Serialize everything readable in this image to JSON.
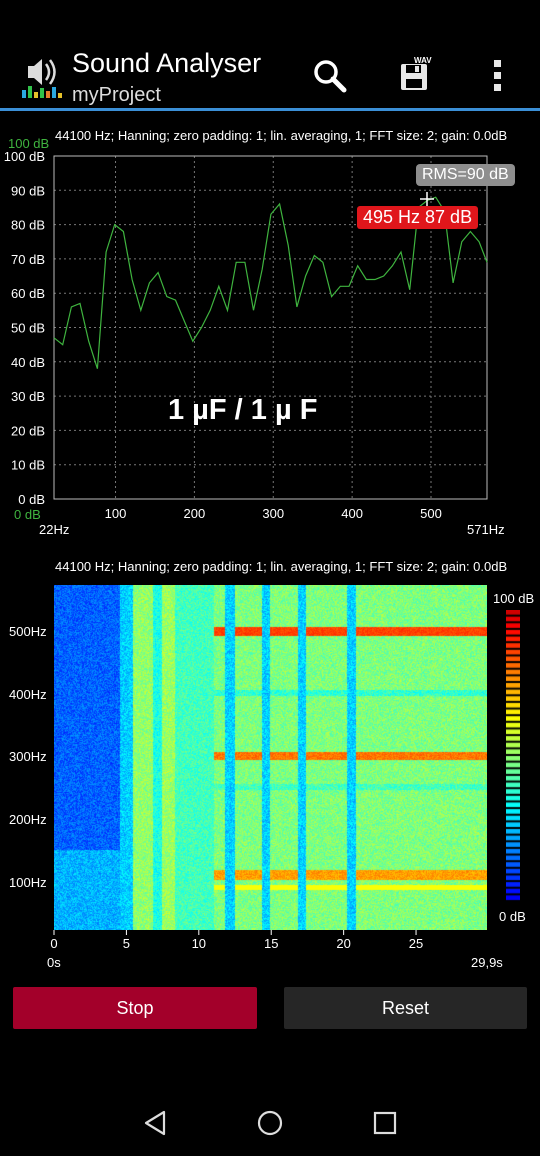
{
  "app": {
    "title": "Sound Analyser",
    "project": "myProject"
  },
  "toolbar": {
    "icons": [
      "search-icon",
      "save-wav-icon",
      "more-vert-icon"
    ],
    "wav_label": "WAV"
  },
  "spectrum": {
    "info": "44100 Hz; Hanning; zero padding: 1; lin. averaging, 1; FFT size: 2; gain: 0.0dB",
    "top_green_label": "100 dB",
    "bottom_green_label": "0 dB",
    "overlay_text": "1 µF / 1 µ F",
    "rms_label": "RMS=90 dB",
    "peak_label": "495 Hz  87 dB",
    "x_min_label": "22Hz",
    "x_max_label": "571Hz"
  },
  "spectrogram": {
    "info": "44100 Hz; Hanning; zero padding: 1; lin. averaging, 1; FFT size: 2; gain: 0.0dB",
    "y_labels": [
      "500Hz",
      "400Hz",
      "300Hz",
      "200Hz",
      "100Hz"
    ],
    "x_ticks": [
      "0",
      "5",
      "10",
      "15",
      "20",
      "25"
    ],
    "time_start": "0s",
    "time_end": "29,9s",
    "colorbar_top": "100 dB",
    "colorbar_bottom": "0 dB"
  },
  "buttons": {
    "stop_label": "Stop",
    "reset_label": "Reset"
  },
  "chart_data": [
    {
      "type": "line",
      "xlim": [
        22,
        571
      ],
      "ylim": [
        0,
        100
      ],
      "y_ticks": [
        "100 dB",
        "90 dB",
        "80 dB",
        "70 dB",
        "60 dB",
        "50 dB",
        "40 dB",
        "30 dB",
        "20 dB",
        "10 dB",
        "0 dB"
      ],
      "x_ticks": [
        "100",
        "200",
        "300",
        "400",
        "500"
      ],
      "grid": true,
      "color": "#3fb43f",
      "x": [
        22,
        33,
        44,
        55,
        66,
        77,
        88,
        99,
        110,
        121,
        132,
        143,
        154,
        165,
        176,
        187,
        198,
        209,
        220,
        231,
        242,
        253,
        264,
        275,
        286,
        297,
        308,
        319,
        330,
        341,
        352,
        363,
        374,
        385,
        396,
        407,
        418,
        429,
        440,
        451,
        462,
        473,
        484,
        495,
        506,
        517,
        528,
        539,
        550,
        561,
        571
      ],
      "y": [
        47,
        45,
        56,
        57,
        46,
        38,
        72,
        80,
        78,
        64,
        55,
        63,
        66,
        59,
        58,
        52,
        46,
        50,
        55,
        62,
        55,
        69,
        69,
        55,
        67,
        83,
        86,
        74,
        56,
        65,
        71,
        69,
        59,
        62,
        62,
        68,
        64,
        64,
        65,
        68,
        72,
        61,
        85,
        87,
        88,
        84,
        63,
        75,
        78,
        75,
        69
      ]
    },
    {
      "type": "heatmap",
      "x_range": [
        0,
        29.9
      ],
      "y_range": [
        22,
        571
      ],
      "colorbar_range": [
        0,
        100
      ]
    }
  ]
}
